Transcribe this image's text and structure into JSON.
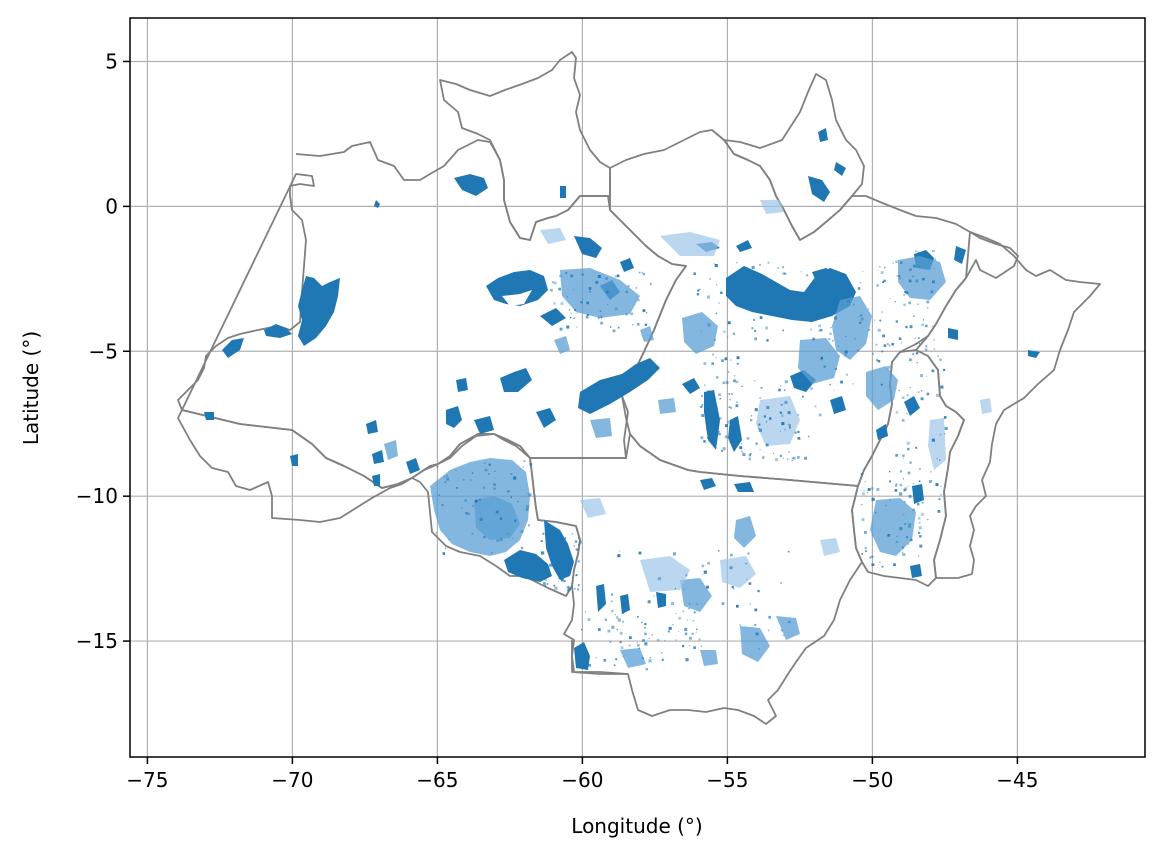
{
  "chart_data": {
    "type": "map",
    "title": "",
    "xlabel": "Longitude (°)",
    "ylabel": "Latitude (°)",
    "xlim": [
      -75.6,
      -40.6
    ],
    "ylim": [
      -19.0,
      6.5
    ],
    "x_ticks": [
      {
        "value": -75,
        "label": "−75"
      },
      {
        "value": -70,
        "label": "−70"
      },
      {
        "value": -65,
        "label": "−65"
      },
      {
        "value": -60,
        "label": "−60"
      },
      {
        "value": -55,
        "label": "−55"
      },
      {
        "value": -50,
        "label": "−50"
      },
      {
        "value": -45,
        "label": "−45"
      }
    ],
    "y_ticks": [
      {
        "value": 5,
        "label": "5"
      },
      {
        "value": 0,
        "label": "0"
      },
      {
        "value": -5,
        "label": "−5"
      },
      {
        "value": -10,
        "label": "−10"
      },
      {
        "value": -15,
        "label": "−15"
      }
    ],
    "grid": true,
    "boundary_color": "#808080",
    "feature_color": "#1f77b4"
  }
}
